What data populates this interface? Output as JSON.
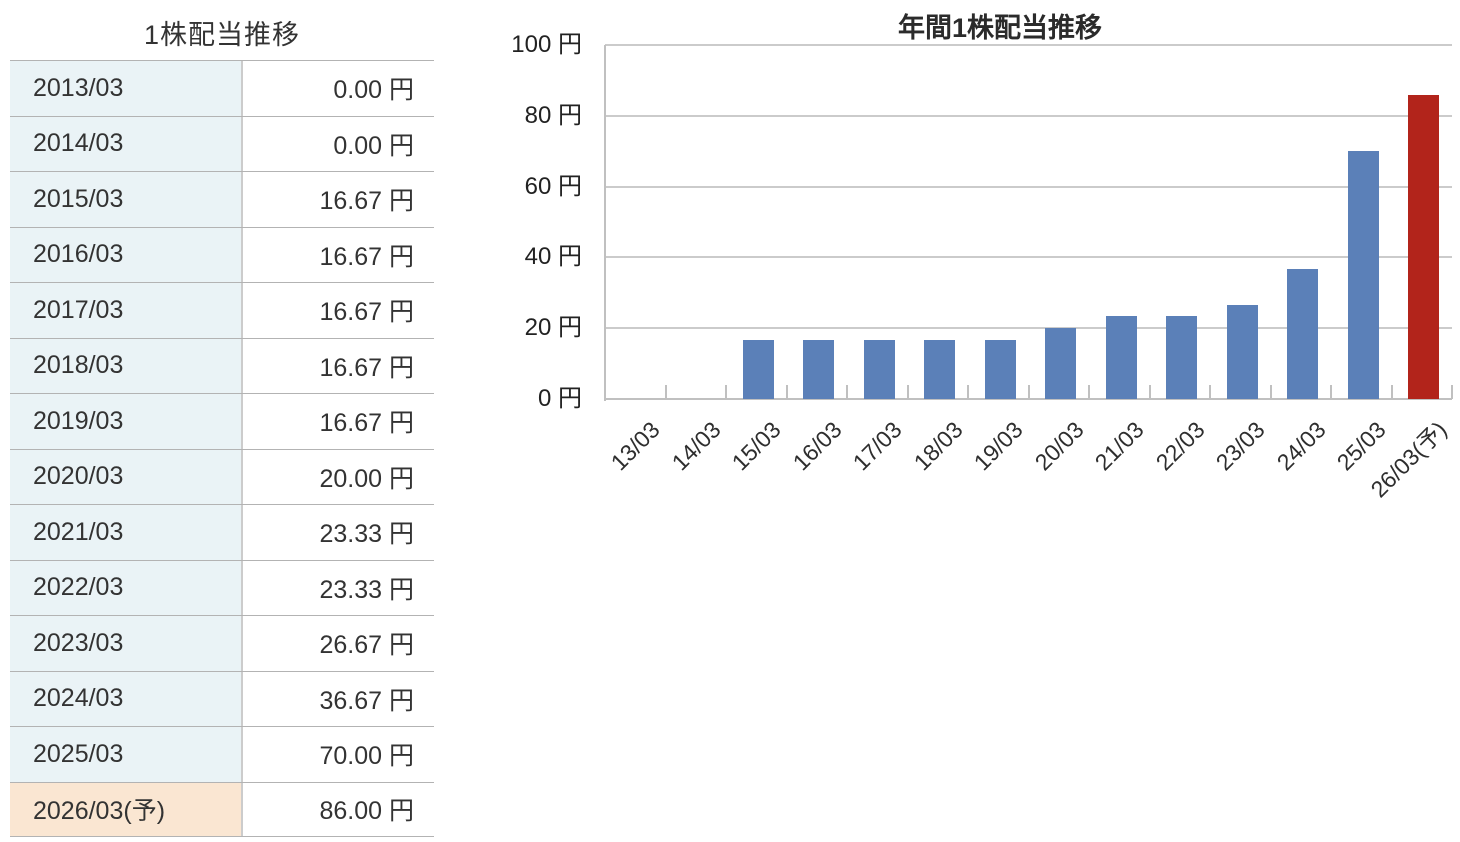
{
  "table": {
    "title": "1株配当推移",
    "rows": [
      {
        "label": "2013/03",
        "value": "0.00 円",
        "highlight": false
      },
      {
        "label": "2014/03",
        "value": "0.00 円",
        "highlight": false
      },
      {
        "label": "2015/03",
        "value": "16.67 円",
        "highlight": false
      },
      {
        "label": "2016/03",
        "value": "16.67 円",
        "highlight": false
      },
      {
        "label": "2017/03",
        "value": "16.67 円",
        "highlight": false
      },
      {
        "label": "2018/03",
        "value": "16.67 円",
        "highlight": false
      },
      {
        "label": "2019/03",
        "value": "16.67 円",
        "highlight": false
      },
      {
        "label": "2020/03",
        "value": "20.00 円",
        "highlight": false
      },
      {
        "label": "2021/03",
        "value": "23.33 円",
        "highlight": false
      },
      {
        "label": "2022/03",
        "value": "23.33 円",
        "highlight": false
      },
      {
        "label": "2023/03",
        "value": "26.67 円",
        "highlight": false
      },
      {
        "label": "2024/03",
        "value": "36.67 円",
        "highlight": false
      },
      {
        "label": "2025/03",
        "value": "70.00 円",
        "highlight": false
      },
      {
        "label": "2026/03(予)",
        "value": "86.00 円",
        "highlight": true
      }
    ],
    "colors": {
      "label_bg": "#eaf3f6",
      "highlight_bg": "#fae6d2",
      "text": "#333333"
    }
  },
  "chart_data": {
    "type": "bar",
    "title": "年間1株配当推移",
    "unit": "円",
    "categories": [
      "13/03",
      "14/03",
      "15/03",
      "16/03",
      "17/03",
      "18/03",
      "19/03",
      "20/03",
      "21/03",
      "22/03",
      "23/03",
      "24/03",
      "25/03",
      "26/03(予)"
    ],
    "values": [
      0,
      0,
      16.67,
      16.67,
      16.67,
      16.67,
      16.67,
      20.0,
      23.33,
      23.33,
      26.67,
      36.67,
      70.0,
      86.0
    ],
    "forecast_index": 13,
    "ylim": [
      0,
      100
    ],
    "ytick_step": 20,
    "ytick_labels": [
      "0 円",
      "20 円",
      "40 円",
      "60 円",
      "80 円",
      "100 円"
    ],
    "grid": true,
    "legend": "none",
    "colors": {
      "bar": "#5b80b8",
      "forecast_bar": "#b2241b",
      "grid": "#cbcbcb",
      "axis": "#c0c0c0",
      "axis_text": "#222222"
    }
  }
}
